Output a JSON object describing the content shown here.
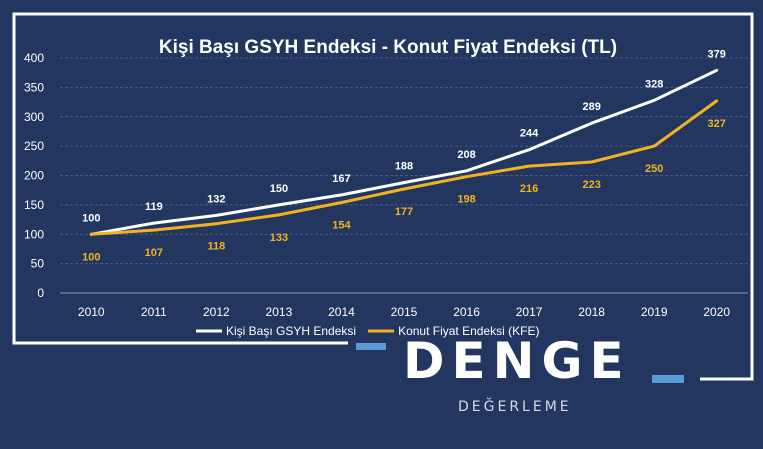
{
  "chart_data": {
    "type": "line",
    "title": "Kişi Başı GSYH Endeksi - Konut Fiyat Endeksi (TL)",
    "x": [
      "2010",
      "2011",
      "2012",
      "2013",
      "2014",
      "2015",
      "2016",
      "2017",
      "2018",
      "2019",
      "2020"
    ],
    "ylim": [
      0,
      400
    ],
    "yticks": [
      0,
      50,
      100,
      150,
      200,
      250,
      300,
      350,
      400
    ],
    "grid": true,
    "legend_position": "bottom",
    "series": [
      {
        "name": "Kişi Başı GSYH Endeksi",
        "color": "#ffffff",
        "label_position": "above",
        "values": [
          100,
          119,
          132,
          150,
          167,
          188,
          208,
          244,
          289,
          328,
          379
        ]
      },
      {
        "name": "Konut Fiyat Endeksi (KFE)",
        "color": "#f2b321",
        "label_position": "below",
        "values": [
          100,
          107,
          118,
          133,
          154,
          177,
          198,
          216,
          223,
          250,
          327
        ]
      }
    ]
  },
  "brand": {
    "name": "DENGE",
    "sub": "DEĞERLEME",
    "accent_color": "#5b9bd5"
  }
}
